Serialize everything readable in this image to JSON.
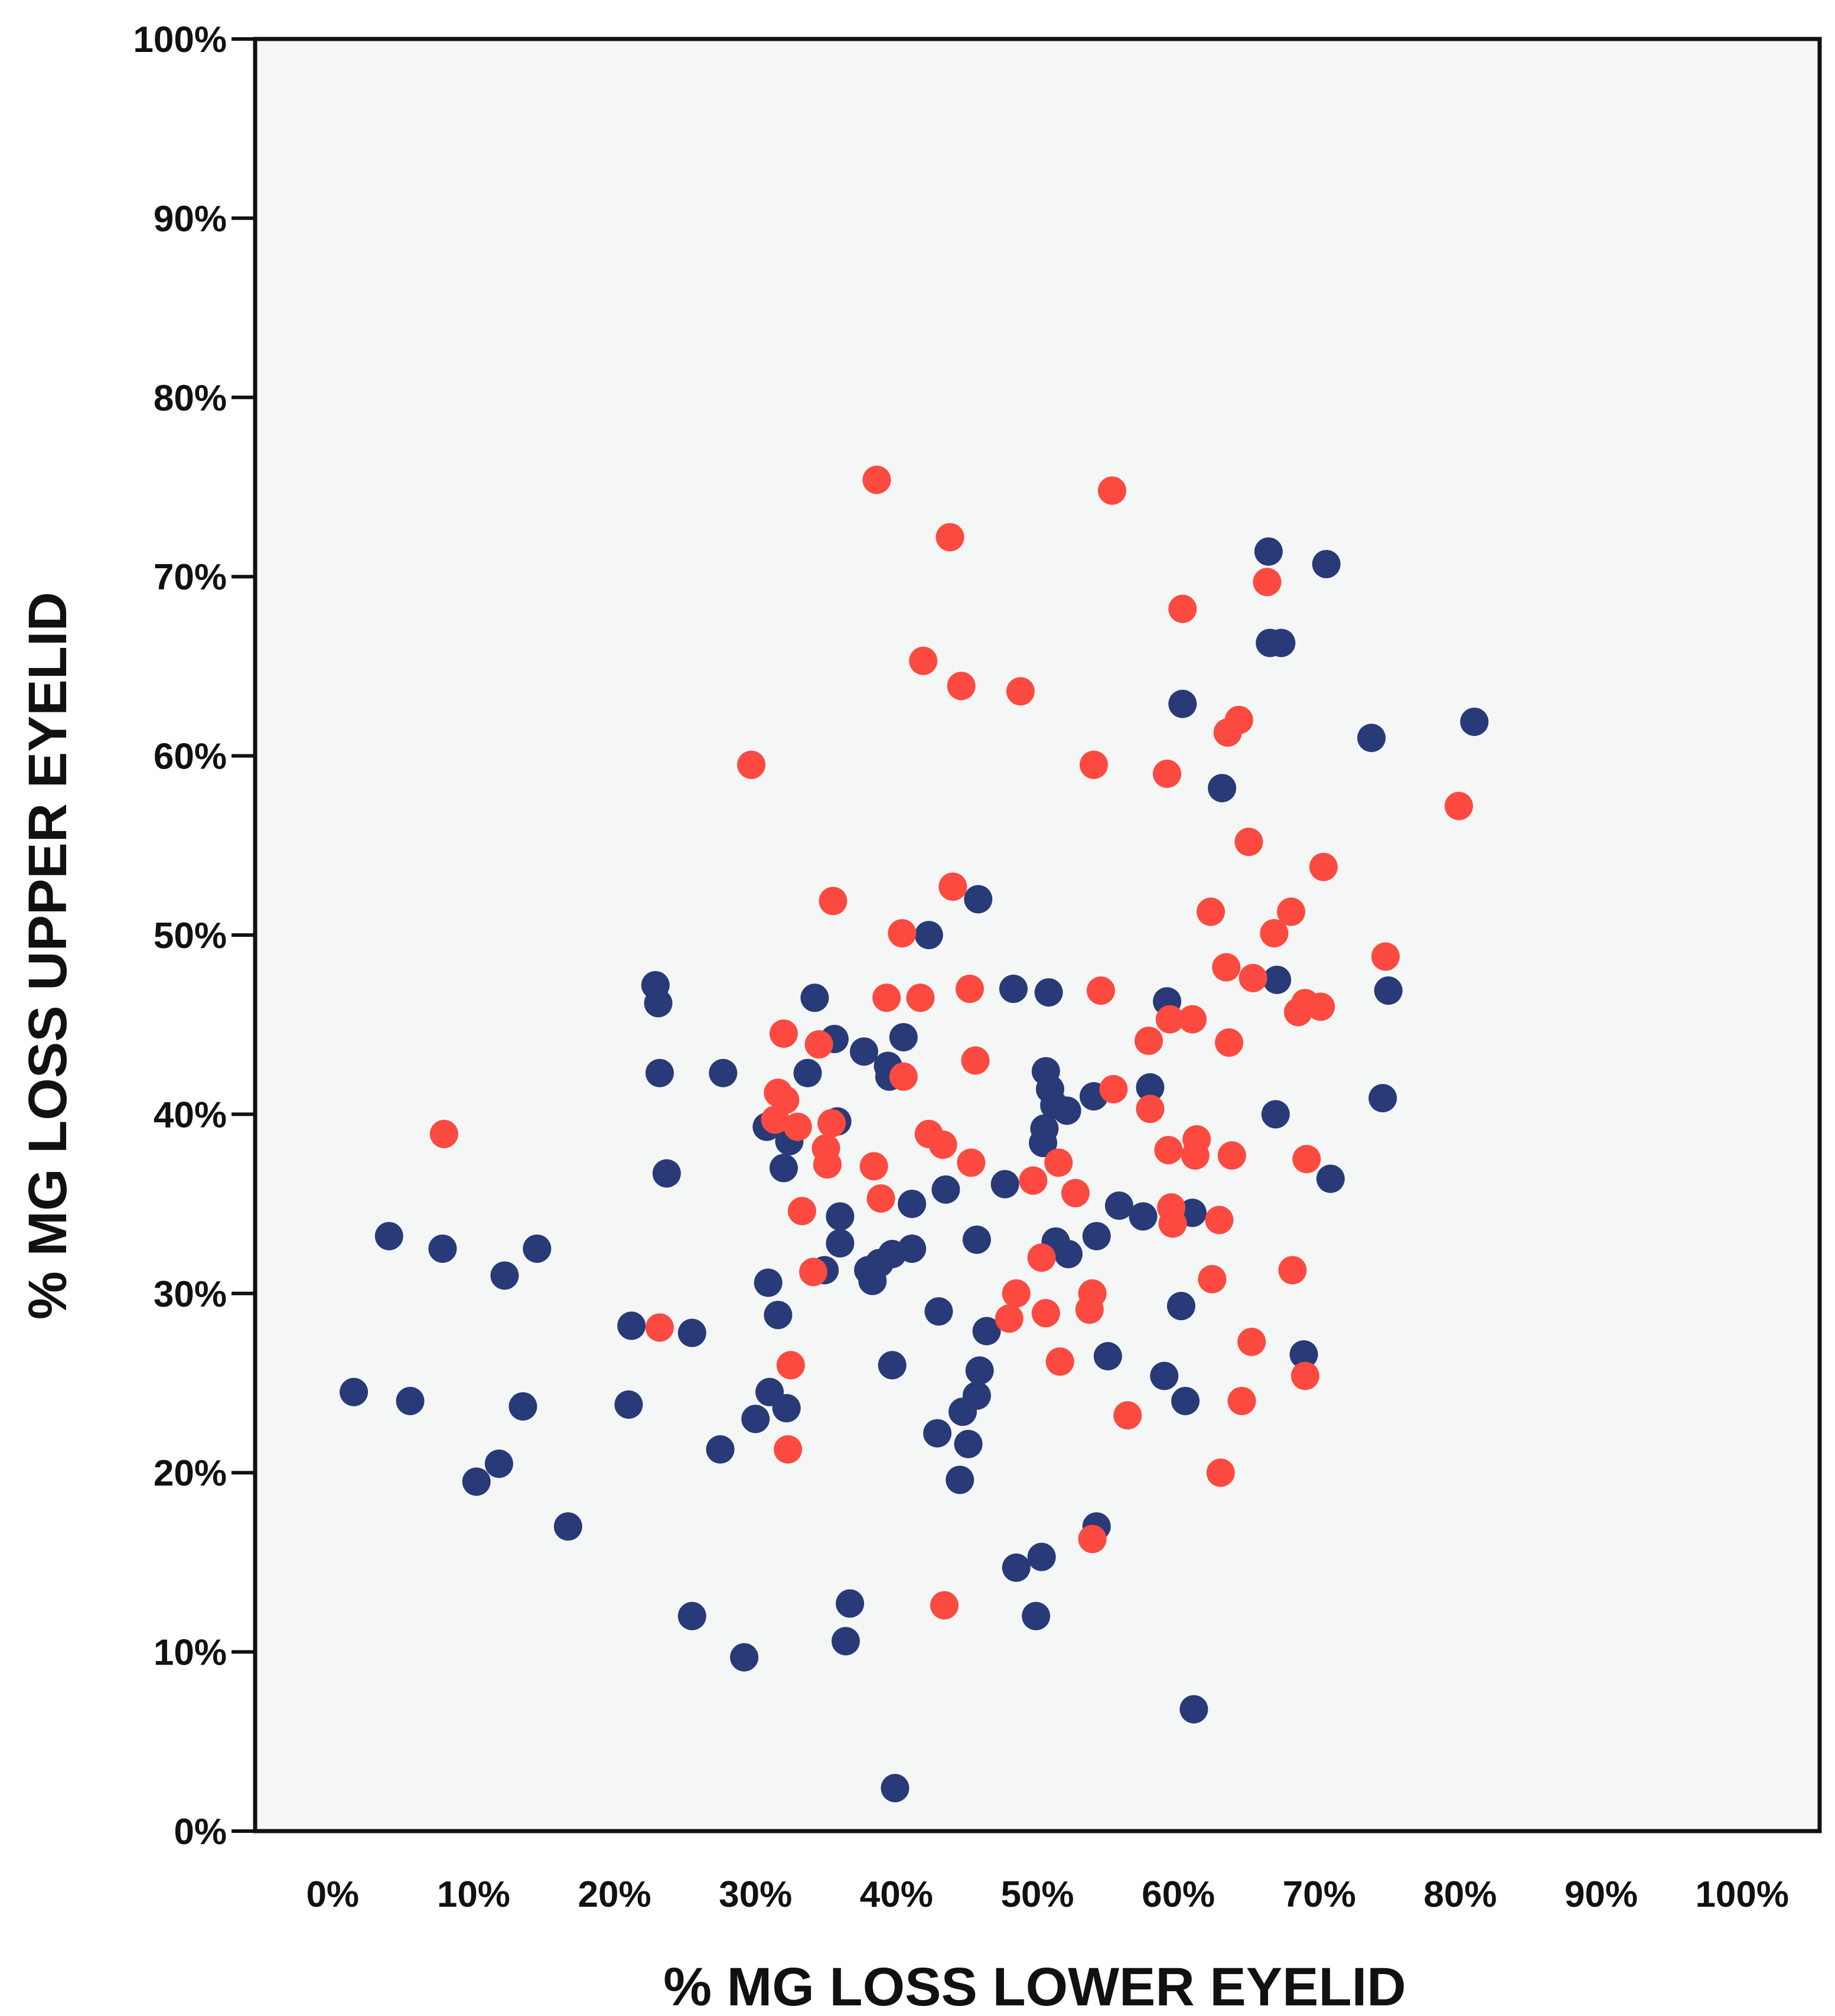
{
  "chart_data": {
    "type": "scatter",
    "title": "",
    "xlabel": "% MG LOSS LOWER EYELID",
    "ylabel": "% MG LOSS UPPER EYELID",
    "xlim": [
      -0.055,
      1.055
    ],
    "ylim": [
      0,
      1
    ],
    "x_ticks": [
      {
        "value": 0.0,
        "label": "0%"
      },
      {
        "value": 0.1,
        "label": "10%"
      },
      {
        "value": 0.2,
        "label": "20%"
      },
      {
        "value": 0.3,
        "label": "30%"
      },
      {
        "value": 0.4,
        "label": "40%"
      },
      {
        "value": 0.5,
        "label": "50%"
      },
      {
        "value": 0.6,
        "label": "60%"
      },
      {
        "value": 0.7,
        "label": "70%"
      },
      {
        "value": 0.8,
        "label": "80%"
      },
      {
        "value": 0.9,
        "label": "90%"
      },
      {
        "value": 1.0,
        "label": "100%"
      }
    ],
    "y_ticks": [
      {
        "value": 0.0,
        "label": "0%"
      },
      {
        "value": 0.1,
        "label": "10%"
      },
      {
        "value": 0.2,
        "label": "20%"
      },
      {
        "value": 0.3,
        "label": "30%"
      },
      {
        "value": 0.4,
        "label": "40%"
      },
      {
        "value": 0.5,
        "label": "50%"
      },
      {
        "value": 0.6,
        "label": "60%"
      },
      {
        "value": 0.7,
        "label": "70%"
      },
      {
        "value": 0.8,
        "label": "80%"
      },
      {
        "value": 0.9,
        "label": "90%"
      },
      {
        "value": 1.0,
        "label": "100%"
      }
    ],
    "grid": false,
    "legend": "none",
    "colors": {
      "plot_background": "#f5f7f6",
      "frame": "#111111"
    },
    "series": [
      {
        "name": "navy",
        "color": "#283a78",
        "points": [
          [
            0.015,
            0.245
          ],
          [
            0.04,
            0.332
          ],
          [
            0.055,
            0.24
          ],
          [
            0.078,
            0.325
          ],
          [
            0.102,
            0.195
          ],
          [
            0.118,
            0.205
          ],
          [
            0.122,
            0.31
          ],
          [
            0.135,
            0.237
          ],
          [
            0.145,
            0.325
          ],
          [
            0.167,
            0.17
          ],
          [
            0.21,
            0.238
          ],
          [
            0.212,
            0.282
          ],
          [
            0.229,
            0.472
          ],
          [
            0.231,
            0.462
          ],
          [
            0.232,
            0.423
          ],
          [
            0.237,
            0.367
          ],
          [
            0.255,
            0.278
          ],
          [
            0.255,
            0.12
          ],
          [
            0.275,
            0.213
          ],
          [
            0.277,
            0.423
          ],
          [
            0.292,
            0.097
          ],
          [
            0.3,
            0.23
          ],
          [
            0.308,
            0.393
          ],
          [
            0.309,
            0.306
          ],
          [
            0.31,
            0.245
          ],
          [
            0.316,
            0.288
          ],
          [
            0.32,
            0.37
          ],
          [
            0.322,
            0.236
          ],
          [
            0.324,
            0.385
          ],
          [
            0.337,
            0.423
          ],
          [
            0.342,
            0.465
          ],
          [
            0.349,
            0.313
          ],
          [
            0.356,
            0.442
          ],
          [
            0.358,
            0.396
          ],
          [
            0.36,
            0.343
          ],
          [
            0.36,
            0.328
          ],
          [
            0.364,
            0.106
          ],
          [
            0.367,
            0.127
          ],
          [
            0.377,
            0.435
          ],
          [
            0.38,
            0.313
          ],
          [
            0.383,
            0.307
          ],
          [
            0.388,
            0.317
          ],
          [
            0.394,
            0.427
          ],
          [
            0.395,
            0.421
          ],
          [
            0.397,
            0.322
          ],
          [
            0.397,
            0.26
          ],
          [
            0.399,
            0.024
          ],
          [
            0.405,
            0.443
          ],
          [
            0.411,
            0.35
          ],
          [
            0.411,
            0.325
          ],
          [
            0.423,
            0.5
          ],
          [
            0.429,
            0.222
          ],
          [
            0.43,
            0.29
          ],
          [
            0.435,
            0.358
          ],
          [
            0.445,
            0.196
          ],
          [
            0.447,
            0.234
          ],
          [
            0.451,
            0.216
          ],
          [
            0.457,
            0.243
          ],
          [
            0.457,
            0.33
          ],
          [
            0.458,
            0.52
          ],
          [
            0.459,
            0.257
          ],
          [
            0.464,
            0.279
          ],
          [
            0.477,
            0.361
          ],
          [
            0.483,
            0.47
          ],
          [
            0.485,
            0.147
          ],
          [
            0.499,
            0.12
          ],
          [
            0.503,
            0.153
          ],
          [
            0.504,
            0.384
          ],
          [
            0.505,
            0.392
          ],
          [
            0.506,
            0.424
          ],
          [
            0.508,
            0.468
          ],
          [
            0.509,
            0.414
          ],
          [
            0.512,
            0.405
          ],
          [
            0.513,
            0.329
          ],
          [
            0.521,
            0.402
          ],
          [
            0.522,
            0.322
          ],
          [
            0.54,
            0.41
          ],
          [
            0.542,
            0.332
          ],
          [
            0.542,
            0.17
          ],
          [
            0.55,
            0.265
          ],
          [
            0.558,
            0.349
          ],
          [
            0.575,
            0.343
          ],
          [
            0.58,
            0.415
          ],
          [
            0.59,
            0.254
          ],
          [
            0.592,
            0.463
          ],
          [
            0.602,
            0.293
          ],
          [
            0.603,
            0.629
          ],
          [
            0.605,
            0.24
          ],
          [
            0.61,
            0.345
          ],
          [
            0.611,
            0.068
          ],
          [
            0.631,
            0.582
          ],
          [
            0.664,
            0.714
          ],
          [
            0.665,
            0.663
          ],
          [
            0.669,
            0.4
          ],
          [
            0.67,
            0.475
          ],
          [
            0.673,
            0.663
          ],
          [
            0.689,
            0.266
          ],
          [
            0.705,
            0.707
          ],
          [
            0.708,
            0.364
          ],
          [
            0.737,
            0.61
          ],
          [
            0.745,
            0.409
          ],
          [
            0.749,
            0.469
          ],
          [
            0.81,
            0.619
          ]
        ]
      },
      {
        "name": "red",
        "color": "#fc4a40",
        "points": [
          [
            0.079,
            0.389
          ],
          [
            0.232,
            0.281
          ],
          [
            0.297,
            0.595
          ],
          [
            0.314,
            0.397
          ],
          [
            0.316,
            0.412
          ],
          [
            0.32,
            0.445
          ],
          [
            0.321,
            0.408
          ],
          [
            0.323,
            0.213
          ],
          [
            0.325,
            0.26
          ],
          [
            0.33,
            0.393
          ],
          [
            0.333,
            0.346
          ],
          [
            0.341,
            0.312
          ],
          [
            0.345,
            0.439
          ],
          [
            0.35,
            0.381
          ],
          [
            0.351,
            0.372
          ],
          [
            0.354,
            0.395
          ],
          [
            0.355,
            0.519
          ],
          [
            0.384,
            0.371
          ],
          [
            0.386,
            0.754
          ],
          [
            0.389,
            0.353
          ],
          [
            0.393,
            0.465
          ],
          [
            0.404,
            0.501
          ],
          [
            0.405,
            0.421
          ],
          [
            0.417,
            0.465
          ],
          [
            0.419,
            0.653
          ],
          [
            0.423,
            0.389
          ],
          [
            0.433,
            0.383
          ],
          [
            0.434,
            0.126
          ],
          [
            0.438,
            0.722
          ],
          [
            0.44,
            0.527
          ],
          [
            0.446,
            0.639
          ],
          [
            0.452,
            0.47
          ],
          [
            0.453,
            0.373
          ],
          [
            0.456,
            0.43
          ],
          [
            0.48,
            0.286
          ],
          [
            0.485,
            0.3
          ],
          [
            0.488,
            0.636
          ],
          [
            0.497,
            0.363
          ],
          [
            0.503,
            0.32
          ],
          [
            0.506,
            0.289
          ],
          [
            0.515,
            0.373
          ],
          [
            0.516,
            0.262
          ],
          [
            0.527,
            0.356
          ],
          [
            0.537,
            0.291
          ],
          [
            0.539,
            0.3
          ],
          [
            0.539,
            0.163
          ],
          [
            0.54,
            0.595
          ],
          [
            0.545,
            0.469
          ],
          [
            0.553,
            0.748
          ],
          [
            0.554,
            0.414
          ],
          [
            0.564,
            0.232
          ],
          [
            0.579,
            0.441
          ],
          [
            0.58,
            0.403
          ],
          [
            0.592,
            0.59
          ],
          [
            0.593,
            0.38
          ],
          [
            0.594,
            0.453
          ],
          [
            0.595,
            0.348
          ],
          [
            0.596,
            0.339
          ],
          [
            0.603,
            0.682
          ],
          [
            0.61,
            0.453
          ],
          [
            0.612,
            0.377
          ],
          [
            0.613,
            0.386
          ],
          [
            0.623,
            0.513
          ],
          [
            0.624,
            0.308
          ],
          [
            0.629,
            0.341
          ],
          [
            0.63,
            0.2
          ],
          [
            0.634,
            0.482
          ],
          [
            0.635,
            0.613
          ],
          [
            0.636,
            0.44
          ],
          [
            0.638,
            0.377
          ],
          [
            0.643,
            0.62
          ],
          [
            0.645,
            0.24
          ],
          [
            0.65,
            0.552
          ],
          [
            0.652,
            0.273
          ],
          [
            0.653,
            0.476
          ],
          [
            0.663,
            0.697
          ],
          [
            0.668,
            0.501
          ],
          [
            0.68,
            0.513
          ],
          [
            0.681,
            0.313
          ],
          [
            0.685,
            0.457
          ],
          [
            0.69,
            0.254
          ],
          [
            0.69,
            0.462
          ],
          [
            0.691,
            0.375
          ],
          [
            0.701,
            0.46
          ],
          [
            0.703,
            0.538
          ],
          [
            0.747,
            0.488
          ],
          [
            0.799,
            0.572
          ]
        ]
      }
    ]
  }
}
